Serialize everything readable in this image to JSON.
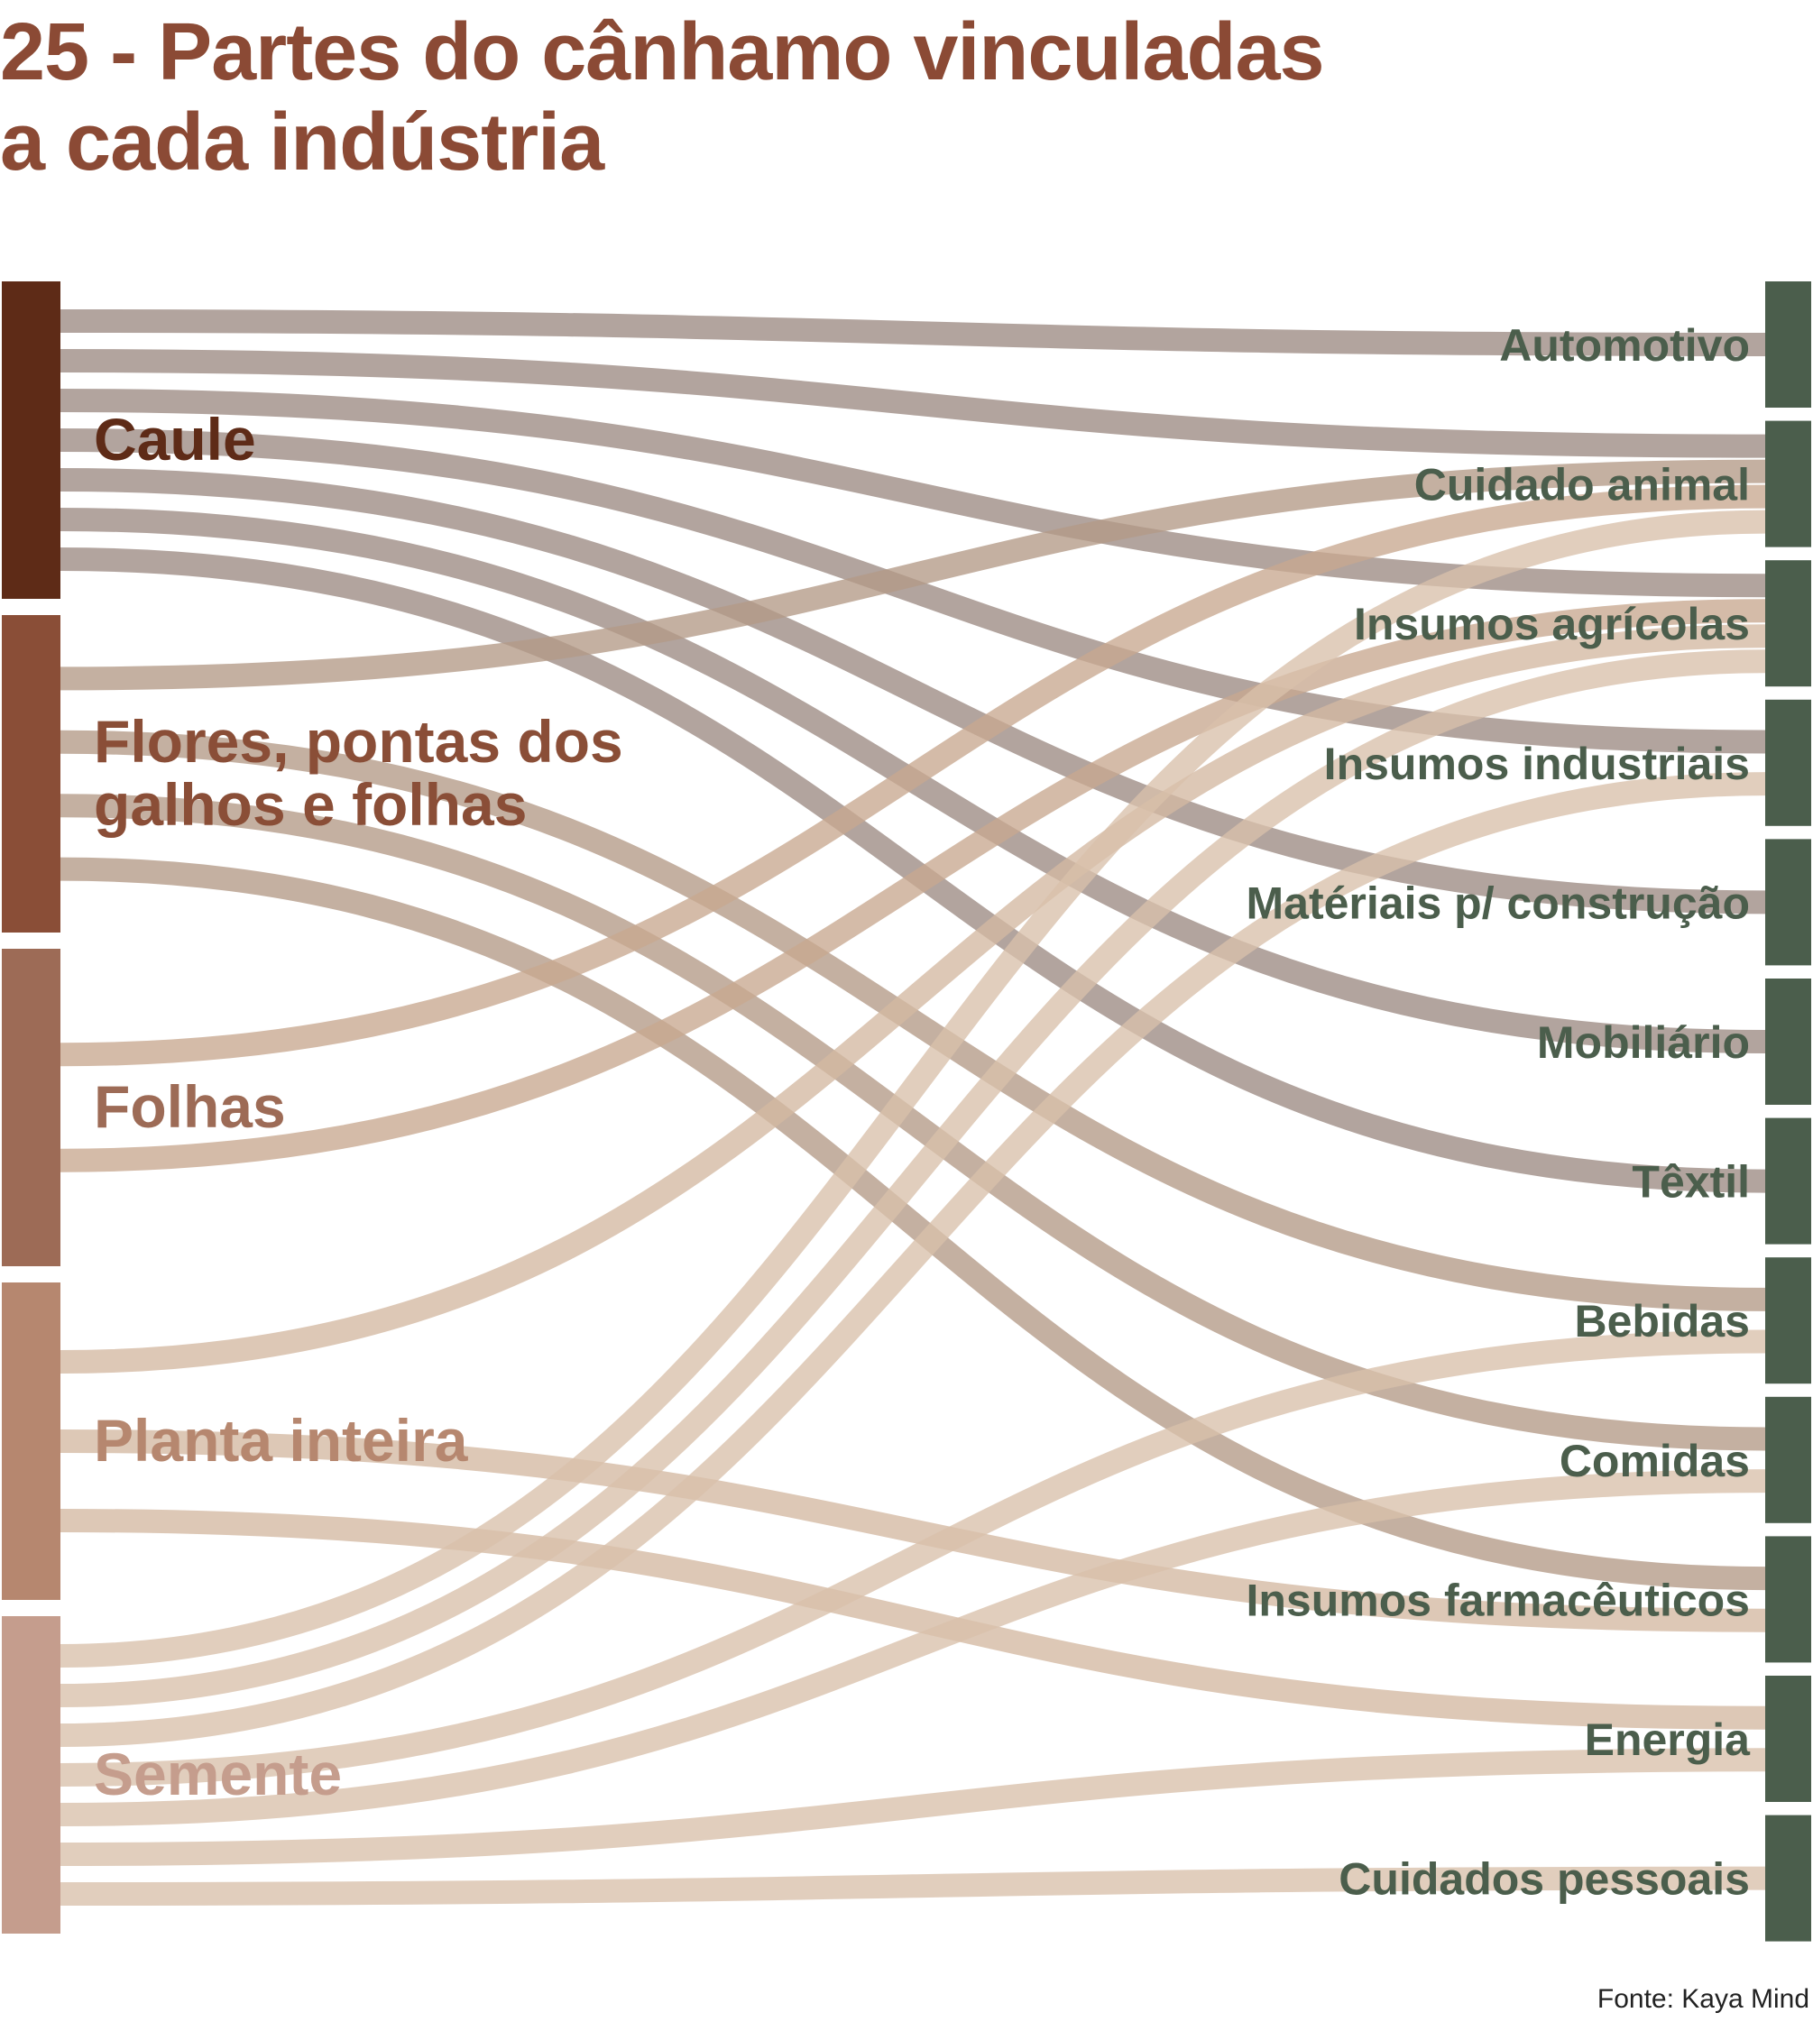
{
  "title": {
    "line1": "25 - Partes do cânhamo vinculadas",
    "line2": "a cada indústria"
  },
  "source": "Fonte: Kaya Mind",
  "colors": {
    "title": "#8b4a35",
    "target_bars": "#4b5e4c",
    "target_labels": "#4b5e4c"
  },
  "sources": [
    {
      "id": "caule",
      "lines": [
        "Caule"
      ],
      "color": "#5e2b17",
      "link_color": "#9c8a83"
    },
    {
      "id": "flores",
      "lines": [
        "Flores, pontas dos",
        "galhos e folhas"
      ],
      "color": "#8a4e37",
      "link_color": "#b39a86"
    },
    {
      "id": "folhas",
      "lines": [
        "Folhas"
      ],
      "color": "#9d6b56",
      "link_color": "#c8a890"
    },
    {
      "id": "planta",
      "lines": [
        "Planta inteira"
      ],
      "color": "#b6876f",
      "link_color": "#d4b8a2"
    },
    {
      "id": "semente",
      "lines": [
        "Semente"
      ],
      "color": "#c59d8d",
      "link_color": "#d9c0aa"
    }
  ],
  "targets": [
    {
      "id": "automotivo",
      "label": "Automotivo"
    },
    {
      "id": "cuidado_animal",
      "label": "Cuidado animal"
    },
    {
      "id": "insumos_agricolas",
      "label": "Insumos agrícolas"
    },
    {
      "id": "insumos_industriais",
      "label": "Insumos industriais"
    },
    {
      "id": "materiais_construcao",
      "label": "Matériais p/ construção"
    },
    {
      "id": "mobiliario",
      "label": "Mobiliário"
    },
    {
      "id": "textil",
      "label": "Têxtil"
    },
    {
      "id": "bebidas",
      "label": "Bebidas"
    },
    {
      "id": "comidas",
      "label": "Comidas"
    },
    {
      "id": "insumos_farmaceuticos",
      "label": "Insumos farmacêuticos"
    },
    {
      "id": "energia",
      "label": "Energia"
    },
    {
      "id": "cuidados_pessoais",
      "label": "Cuidados pessoais"
    }
  ],
  "links": [
    {
      "source": "caule",
      "target": "cuidado_animal"
    },
    {
      "source": "caule",
      "target": "insumos_agricolas"
    },
    {
      "source": "caule",
      "target": "automotivo"
    },
    {
      "source": "caule",
      "target": "materiais_construcao"
    },
    {
      "source": "caule",
      "target": "mobiliario"
    },
    {
      "source": "caule",
      "target": "textil"
    },
    {
      "source": "caule",
      "target": "insumos_industriais"
    },
    {
      "source": "flores",
      "target": "cuidado_animal"
    },
    {
      "source": "flores",
      "target": "insumos_farmaceuticos"
    },
    {
      "source": "flores",
      "target": "comidas"
    },
    {
      "source": "flores",
      "target": "bebidas"
    },
    {
      "source": "folhas",
      "target": "cuidado_animal"
    },
    {
      "source": "folhas",
      "target": "insumos_agricolas"
    },
    {
      "source": "planta",
      "target": "insumos_agricolas"
    },
    {
      "source": "planta",
      "target": "insumos_farmaceuticos"
    },
    {
      "source": "planta",
      "target": "energia"
    },
    {
      "source": "semente",
      "target": "insumos_agricolas"
    },
    {
      "source": "semente",
      "target": "cuidado_animal"
    },
    {
      "source": "semente",
      "target": "insumos_industriais"
    },
    {
      "source": "semente",
      "target": "comidas"
    },
    {
      "source": "semente",
      "target": "bebidas"
    },
    {
      "source": "semente",
      "target": "energia"
    },
    {
      "source": "semente",
      "target": "cuidados_pessoais"
    }
  ]
}
